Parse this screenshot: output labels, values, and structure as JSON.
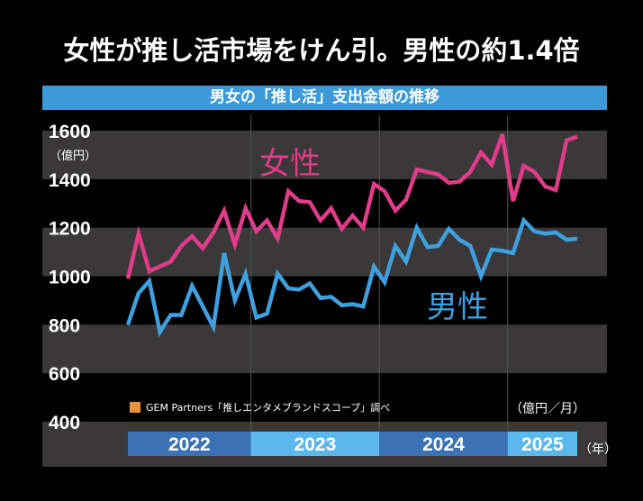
{
  "title": "女性が推し活市場をけん引。男性の約1.4倍",
  "subtitle": "男女の「推し活」支出金額の推移",
  "colors": {
    "female": "#e03c8a",
    "male": "#3fa0e0",
    "band": "#3a3838",
    "subtitle_bar": "#3d9ad9",
    "year_dark": "#3a72b5",
    "year_light": "#5ab8ec",
    "source_marker": "#e8963a"
  },
  "chart_data": {
    "type": "line",
    "title": "男女の「推し活」支出金額の推移",
    "ylabel": "（億円）",
    "unit_note": "（億円／月）",
    "xlabel": "（年）",
    "ylim": [
      400,
      1600
    ],
    "yticks": [
      "1600",
      "1400",
      "1200",
      "1000",
      "800",
      "600",
      "400"
    ],
    "ytick_values": [
      1600,
      1400,
      1200,
      1000,
      800,
      600,
      400
    ],
    "years": [
      {
        "label": "2022",
        "months": 12
      },
      {
        "label": "2023",
        "months": 12
      },
      {
        "label": "2024",
        "months": 12
      },
      {
        "label": "2025",
        "months": 7
      }
    ],
    "x": [
      "2022-01",
      "2022-02",
      "2022-03",
      "2022-04",
      "2022-05",
      "2022-06",
      "2022-07",
      "2022-08",
      "2022-09",
      "2022-10",
      "2022-11",
      "2022-12",
      "2023-01",
      "2023-02",
      "2023-03",
      "2023-04",
      "2023-05",
      "2023-06",
      "2023-07",
      "2023-08",
      "2023-09",
      "2023-10",
      "2023-11",
      "2023-12",
      "2024-01",
      "2024-02",
      "2024-03",
      "2024-04",
      "2024-05",
      "2024-06",
      "2024-07",
      "2024-08",
      "2024-09",
      "2024-10",
      "2024-11",
      "2024-12",
      "2025-01",
      "2025-02",
      "2025-03",
      "2025-04",
      "2025-05",
      "2025-06",
      "2025-07"
    ],
    "series": [
      {
        "name": "女性",
        "key": "female",
        "values": [
          990,
          1175,
          1020,
          1040,
          1060,
          1125,
          1165,
          1115,
          1180,
          1270,
          1130,
          1280,
          1185,
          1230,
          1155,
          1350,
          1310,
          1305,
          1230,
          1280,
          1195,
          1250,
          1200,
          1380,
          1350,
          1270,
          1315,
          1440,
          1430,
          1420,
          1385,
          1390,
          1430,
          1510,
          1460,
          1585,
          1310,
          1455,
          1430,
          1370,
          1355,
          1560,
          1575
        ]
      },
      {
        "name": "男性",
        "key": "male",
        "values": [
          800,
          930,
          980,
          770,
          840,
          840,
          960,
          875,
          790,
          1095,
          900,
          1010,
          830,
          845,
          1010,
          950,
          945,
          970,
          910,
          915,
          880,
          885,
          875,
          1040,
          975,
          1125,
          1060,
          1200,
          1120,
          1125,
          1195,
          1150,
          1125,
          1000,
          1110,
          1105,
          1095,
          1230,
          1185,
          1175,
          1180,
          1150,
          1155
        ]
      }
    ],
    "source": "GEM Partners「推しエンタメブランドスコープ」調べ",
    "grid": "alternating horizontal bands",
    "legend": "inline labels"
  }
}
